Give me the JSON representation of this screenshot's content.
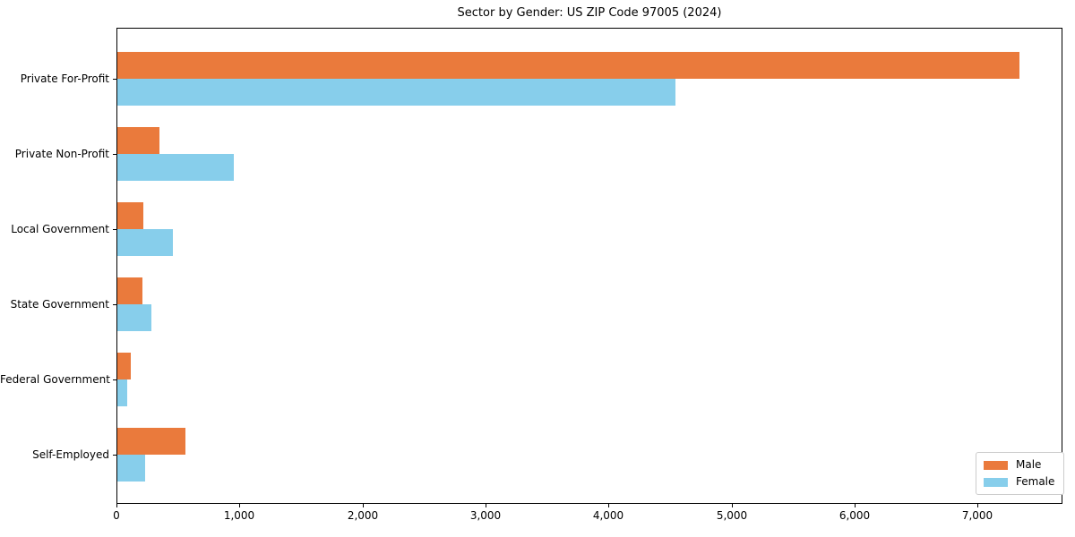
{
  "title": "Sector by Gender: US ZIP Code 97005 (2024)",
  "colors": {
    "male": "#ea7a3c",
    "female": "#87ceeb",
    "axis": "#000000",
    "legend_border": "#cccccc",
    "background": "#ffffff"
  },
  "chart_data": {
    "type": "bar",
    "orientation": "horizontal",
    "title": "Sector by Gender: US ZIP Code 97005 (2024)",
    "categories": [
      "Private For-Profit",
      "Private Non-Profit",
      "Local Government",
      "State Government",
      "Federal Government",
      "Self-Employed"
    ],
    "series": [
      {
        "name": "Male",
        "color": "#ea7a3c",
        "values": [
          7330,
          345,
          210,
          205,
          110,
          550
        ]
      },
      {
        "name": "Female",
        "color": "#87ceeb",
        "values": [
          4540,
          950,
          450,
          275,
          80,
          225
        ]
      }
    ],
    "xlabel": "",
    "ylabel": "",
    "xlim": [
      0,
      7690
    ],
    "xticks": [
      0,
      1000,
      2000,
      3000,
      4000,
      5000,
      6000,
      7000
    ],
    "xtick_labels": [
      "0",
      "1,000",
      "2,000",
      "3,000",
      "4,000",
      "5,000",
      "6,000",
      "7,000"
    ],
    "grid": false,
    "legend_position": "lower right"
  },
  "legend": {
    "items": [
      {
        "label": "Male"
      },
      {
        "label": "Female"
      }
    ]
  }
}
